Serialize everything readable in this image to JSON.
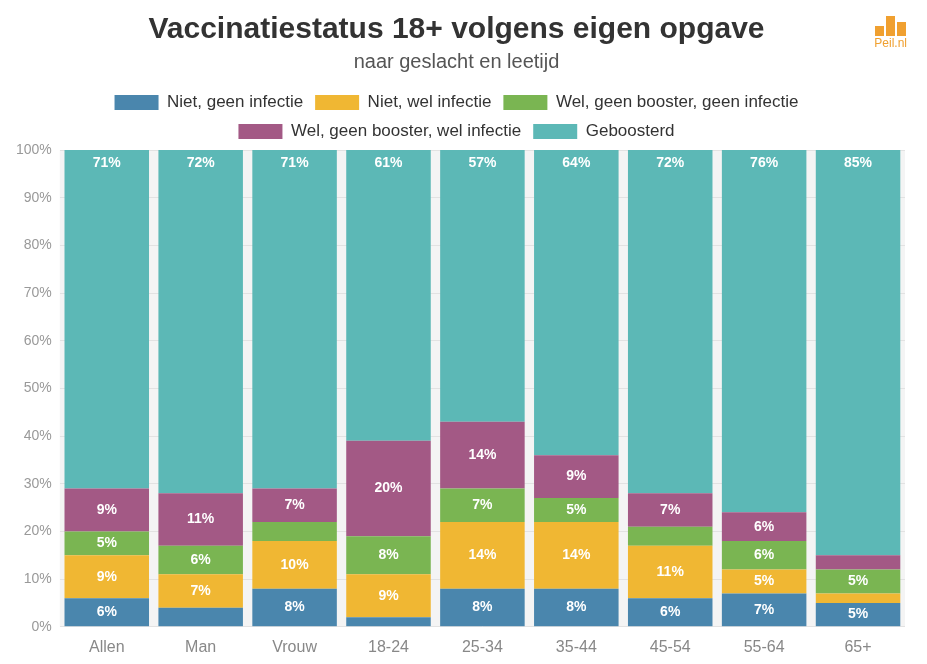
{
  "chart_data": {
    "type": "bar",
    "title": "Vaccinatiestatus 18+ volgens eigen opgave",
    "subtitle": "naar geslacht en leetijd",
    "annotations": [
      "Peil.nl"
    ],
    "categories": [
      "Allen",
      "Man",
      "Vrouw",
      "18-24",
      "25-34",
      "35-44",
      "45-54",
      "55-64",
      "65+"
    ],
    "series": [
      {
        "name": "Niet, geen infectie",
        "color": "#4a86ad",
        "values": [
          6,
          4,
          8,
          2,
          8,
          8,
          6,
          7,
          5
        ],
        "value_labels": [
          "6%",
          null,
          "8%",
          null,
          "8%",
          "8%",
          "6%",
          "7%",
          "5%"
        ]
      },
      {
        "name": "Niet, wel infectie",
        "color": "#f0b733",
        "values": [
          9,
          7,
          10,
          9,
          14,
          14,
          11,
          5,
          2
        ],
        "value_labels": [
          "9%",
          "7%",
          "10%",
          "9%",
          "14%",
          "14%",
          "11%",
          "5%",
          null
        ]
      },
      {
        "name": "Wel, geen booster, geen infectie",
        "color": "#7ab552",
        "values": [
          5,
          6,
          4,
          8,
          7,
          5,
          4,
          6,
          5
        ],
        "value_labels": [
          "5%",
          "6%",
          null,
          "8%",
          "7%",
          "5%",
          null,
          "6%",
          "5%"
        ]
      },
      {
        "name": "Wel, geen booster, wel infectie",
        "color": "#a35985",
        "values": [
          9,
          11,
          7,
          20,
          14,
          9,
          7,
          6,
          3
        ],
        "value_labels": [
          "9%",
          "11%",
          "7%",
          "20%",
          "14%",
          "9%",
          "7%",
          "6%",
          null
        ]
      },
      {
        "name": "Geboosterd",
        "color": "#5cb8b6",
        "values": [
          71,
          72,
          71,
          61,
          57,
          64,
          72,
          76,
          85
        ],
        "value_labels": [
          "71%",
          "72%",
          "71%",
          "61%",
          "57%",
          "64%",
          "72%",
          "76%",
          "85%"
        ]
      }
    ],
    "stacked": true,
    "data_labels": true,
    "legend": "top",
    "grid": true,
    "ylim": [
      0,
      100
    ],
    "yticks": [
      {
        "value": 0,
        "label": "0%"
      },
      {
        "value": 10,
        "label": "10%"
      },
      {
        "value": 20,
        "label": "20%"
      },
      {
        "value": 30,
        "label": "30%"
      },
      {
        "value": 40,
        "label": "40%"
      },
      {
        "value": 50,
        "label": "50%"
      },
      {
        "value": 60,
        "label": "60%"
      },
      {
        "value": 70,
        "label": "70%"
      },
      {
        "value": 80,
        "label": "80%"
      },
      {
        "value": 90,
        "label": "90%"
      },
      {
        "value": 100,
        "label": "100%"
      }
    ]
  }
}
